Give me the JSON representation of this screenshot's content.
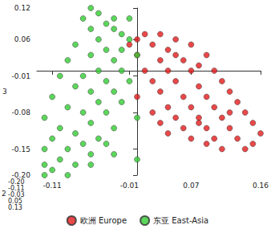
{
  "chart_data": {
    "type": "scatter",
    "ylabel": "3",
    "zlabel": "2",
    "xlim": [
      -0.13,
      0.16
    ],
    "xticks": [
      -0.11,
      -0.01,
      0.07,
      0.16
    ],
    "ylim": [
      -0.2,
      0.12
    ],
    "yticks": [
      {
        "value": -0.2,
        "label": "-0.20"
      },
      -0.15,
      -0.08,
      -0.01,
      0.06,
      0.12
    ],
    "zticks": [
      {
        "value": -0.2,
        "label": "-0.20"
      },
      -0.11,
      -0.03,
      0.05,
      0.13
    ],
    "legend": "bottom",
    "grid": false,
    "series": [
      {
        "name": "欧洲 Europe",
        "color": "#e31a1c",
        "marker": "circle",
        "values": [
          [
            0.01,
            0.07
          ],
          [
            0.03,
            0.07
          ],
          [
            0.05,
            0.06
          ],
          [
            0.02,
            0.05
          ],
          [
            0.04,
            0.04
          ],
          [
            0.07,
            0.05
          ],
          [
            0.0,
            0.03
          ],
          [
            0.03,
            0.02
          ],
          [
            0.06,
            0.02
          ],
          [
            0.09,
            0.03
          ],
          [
            0.01,
            0.0
          ],
          [
            0.04,
            0.0
          ],
          [
            0.07,
            0.0
          ],
          [
            0.1,
            0.0
          ],
          [
            0.02,
            -0.02
          ],
          [
            0.05,
            -0.02
          ],
          [
            0.08,
            -0.03
          ],
          [
            0.11,
            -0.02
          ],
          [
            0.03,
            -0.04
          ],
          [
            0.06,
            -0.05
          ],
          [
            0.09,
            -0.05
          ],
          [
            0.12,
            -0.04
          ],
          [
            0.0,
            -0.05
          ],
          [
            0.04,
            -0.07
          ],
          [
            0.07,
            -0.07
          ],
          [
            0.1,
            -0.07
          ],
          [
            0.13,
            -0.06
          ],
          [
            0.02,
            -0.08
          ],
          [
            0.05,
            -0.09
          ],
          [
            0.08,
            -0.09
          ],
          [
            0.11,
            -0.09
          ],
          [
            0.14,
            -0.08
          ],
          [
            0.06,
            -0.11
          ],
          [
            0.09,
            -0.11
          ],
          [
            0.12,
            -0.11
          ],
          [
            0.15,
            -0.1
          ],
          [
            0.07,
            -0.13
          ],
          [
            0.1,
            -0.13
          ],
          [
            0.13,
            -0.13
          ],
          [
            0.16,
            -0.12
          ],
          [
            0.11,
            -0.15
          ],
          [
            0.14,
            -0.15
          ],
          [
            0.08,
            -0.1
          ],
          [
            0.03,
            -0.1
          ],
          [
            -0.01,
            0.05
          ],
          [
            0.0,
            0.06
          ],
          [
            0.05,
            0.03
          ],
          [
            0.08,
            0.01
          ],
          [
            0.12,
            -0.08
          ],
          [
            0.15,
            -0.14
          ],
          [
            0.04,
            -0.12
          ],
          [
            0.09,
            -0.14
          ]
        ]
      },
      {
        "name": "东亚 East-Asia",
        "color": "#33cc33",
        "marker": "circle",
        "values": [
          [
            -0.06,
            0.12
          ],
          [
            -0.05,
            0.11
          ],
          [
            -0.07,
            0.1
          ],
          [
            -0.04,
            0.09
          ],
          [
            -0.06,
            0.08
          ],
          [
            -0.03,
            0.08
          ],
          [
            -0.05,
            0.06
          ],
          [
            -0.02,
            0.07
          ],
          [
            -0.08,
            0.05
          ],
          [
            -0.04,
            0.04
          ],
          [
            -0.01,
            0.06
          ],
          [
            -0.06,
            0.03
          ],
          [
            -0.03,
            0.02
          ],
          [
            -0.09,
            0.02
          ],
          [
            -0.05,
            0.0
          ],
          [
            -0.02,
            0.0
          ],
          [
            -0.07,
            -0.01
          ],
          [
            -0.1,
            -0.01
          ],
          [
            -0.04,
            -0.02
          ],
          [
            -0.01,
            -0.02
          ],
          [
            -0.08,
            -0.03
          ],
          [
            -0.06,
            -0.04
          ],
          [
            -0.03,
            -0.04
          ],
          [
            -0.11,
            -0.05
          ],
          [
            -0.05,
            -0.06
          ],
          [
            -0.02,
            -0.06
          ],
          [
            -0.09,
            -0.07
          ],
          [
            -0.07,
            -0.08
          ],
          [
            -0.04,
            -0.08
          ],
          [
            -0.12,
            -0.09
          ],
          [
            -0.06,
            -0.1
          ],
          [
            -0.1,
            -0.11
          ],
          [
            -0.03,
            -0.11
          ],
          [
            -0.08,
            -0.12
          ],
          [
            -0.05,
            -0.13
          ],
          [
            -0.11,
            -0.13
          ],
          [
            -0.07,
            -0.14
          ],
          [
            -0.09,
            -0.15
          ],
          [
            -0.12,
            -0.15
          ],
          [
            -0.06,
            -0.16
          ],
          [
            -0.1,
            -0.17
          ],
          [
            -0.08,
            -0.18
          ],
          [
            -0.12,
            -0.18
          ],
          [
            -0.11,
            -0.19
          ],
          [
            -0.09,
            -0.2
          ],
          [
            -0.06,
            -0.18
          ],
          [
            -0.03,
            -0.16
          ],
          [
            0.0,
            -0.17
          ],
          [
            -0.02,
            0.04
          ],
          [
            0.0,
            0.03
          ],
          [
            0.0,
            -0.09
          ],
          [
            -0.12,
            -0.2
          ],
          [
            -0.04,
            -0.14
          ],
          [
            -0.01,
            0.1
          ],
          [
            -0.03,
            0.1
          ]
        ]
      }
    ]
  }
}
